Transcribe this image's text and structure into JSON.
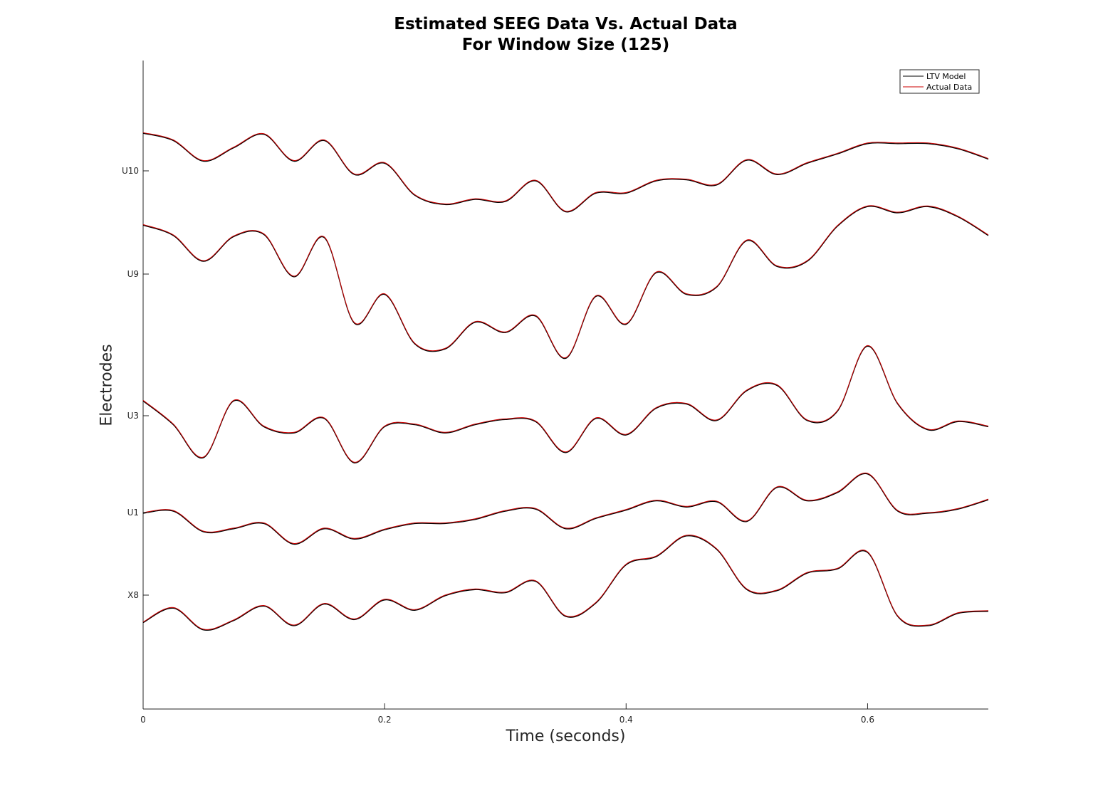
{
  "chart_data": {
    "type": "line",
    "title": [
      "Estimated SEEG Data Vs. Actual Data",
      "For Window Size (125)"
    ],
    "xlabel": "Time (seconds)",
    "ylabel": "Electrodes",
    "xlim": [
      0,
      0.7
    ],
    "xticks": [
      0,
      0.2,
      0.4,
      0.6
    ],
    "xtick_labels": [
      "0",
      "0.2",
      "0.4",
      "0.6"
    ],
    "ytick_labels": [
      "X8",
      "U1",
      "U3",
      "U9",
      "U10"
    ],
    "legend": {
      "position": "top-right",
      "entries": [
        "LTV Model",
        "Actual Data"
      ]
    },
    "series_styles": [
      {
        "name": "LTV Model",
        "color": "#000000"
      },
      {
        "name": "Actual Data",
        "color": "#cc0000"
      }
    ],
    "x": [
      0,
      0.025,
      0.05,
      0.075,
      0.1,
      0.125,
      0.15,
      0.175,
      0.2,
      0.225,
      0.25,
      0.275,
      0.3,
      0.325,
      0.35,
      0.375,
      0.4,
      0.425,
      0.45,
      0.475,
      0.5,
      0.525,
      0.55,
      0.575,
      0.6,
      0.625,
      0.65,
      0.675,
      0.7
    ],
    "electrodes": [
      {
        "name": "U10",
        "offset": 4,
        "values": [
          0.37,
          0.3,
          0.1,
          0.23,
          0.36,
          0.1,
          0.3,
          -0.03,
          0.08,
          -0.23,
          -0.32,
          -0.27,
          -0.29,
          -0.09,
          -0.39,
          -0.21,
          -0.21,
          -0.09,
          -0.08,
          -0.13,
          0.11,
          -0.03,
          0.08,
          0.17,
          0.27,
          0.27,
          0.27,
          0.22,
          0.12
        ]
      },
      {
        "name": "U9",
        "offset": 3,
        "values": [
          0.48,
          0.38,
          0.13,
          0.37,
          0.39,
          -0.02,
          0.36,
          -0.47,
          -0.19,
          -0.67,
          -0.72,
          -0.46,
          -0.56,
          -0.4,
          -0.81,
          -0.21,
          -0.48,
          0.02,
          -0.19,
          -0.12,
          0.33,
          0.08,
          0.13,
          0.47,
          0.66,
          0.6,
          0.66,
          0.56,
          0.38
        ]
      },
      {
        "name": "U3",
        "offset": 2,
        "values": [
          0.15,
          -0.08,
          -0.4,
          0.15,
          -0.1,
          -0.16,
          -0.02,
          -0.45,
          -0.1,
          -0.08,
          -0.16,
          -0.08,
          -0.03,
          -0.05,
          -0.35,
          -0.02,
          -0.18,
          0.08,
          0.12,
          -0.04,
          0.25,
          0.3,
          -0.04,
          0.05,
          0.68,
          0.12,
          -0.13,
          -0.05,
          -0.1
        ]
      },
      {
        "name": "U1",
        "offset": 1,
        "values": [
          0.0,
          0.02,
          -0.18,
          -0.15,
          -0.1,
          -0.3,
          -0.15,
          -0.25,
          -0.16,
          -0.1,
          -0.1,
          -0.06,
          0.02,
          0.04,
          -0.15,
          -0.05,
          0.03,
          0.12,
          0.06,
          0.11,
          -0.08,
          0.25,
          0.12,
          0.2,
          0.38,
          0.02,
          0.0,
          0.04,
          0.13
        ]
      },
      {
        "name": "X8",
        "offset": 0,
        "values": [
          -0.26,
          -0.12,
          -0.33,
          -0.24,
          -0.1,
          -0.29,
          -0.08,
          -0.23,
          -0.04,
          -0.14,
          0.0,
          0.06,
          0.03,
          0.14,
          -0.2,
          -0.07,
          0.3,
          0.38,
          0.58,
          0.45,
          0.06,
          0.05,
          0.22,
          0.26,
          0.42,
          -0.2,
          -0.29,
          -0.17,
          -0.15
        ]
      }
    ]
  }
}
